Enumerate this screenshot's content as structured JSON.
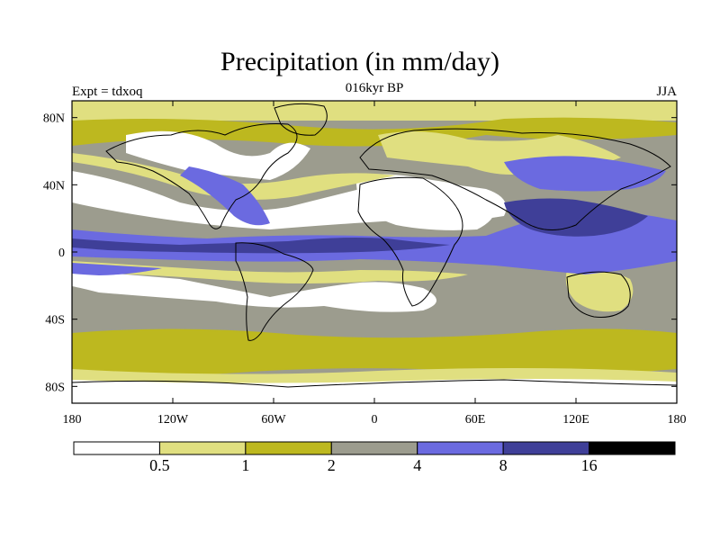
{
  "title": "Precipitation (in mm/day)",
  "expt_label": "Expt = tdxoq",
  "period_label": "016kyr BP",
  "season_label": "JJA",
  "map": {
    "lon_range": [
      -180,
      180
    ],
    "lat_range": [
      -90,
      90
    ],
    "lat_ticks": [
      {
        "value": 80,
        "label": "80N"
      },
      {
        "value": 40,
        "label": "40N"
      },
      {
        "value": 0,
        "label": "0"
      },
      {
        "value": -40,
        "label": "40S"
      },
      {
        "value": -80,
        "label": "80S"
      }
    ],
    "lon_ticks": [
      {
        "value": -180,
        "label": "180"
      },
      {
        "value": -120,
        "label": "120W"
      },
      {
        "value": -60,
        "label": "60W"
      },
      {
        "value": 0,
        "label": "0"
      },
      {
        "value": 60,
        "label": "60E"
      },
      {
        "value": 120,
        "label": "120E"
      },
      {
        "value": 180,
        "label": "180"
      }
    ]
  },
  "colorbar": {
    "units": "mm/day",
    "levels": [
      "0.5",
      "1",
      "2",
      "4",
      "8",
      "16"
    ],
    "colors": [
      "#ffffff",
      "#e0df80",
      "#bdb81f",
      "#9c9c8e",
      "#6b6ae0",
      "#3f3f98",
      "#000000"
    ]
  }
}
